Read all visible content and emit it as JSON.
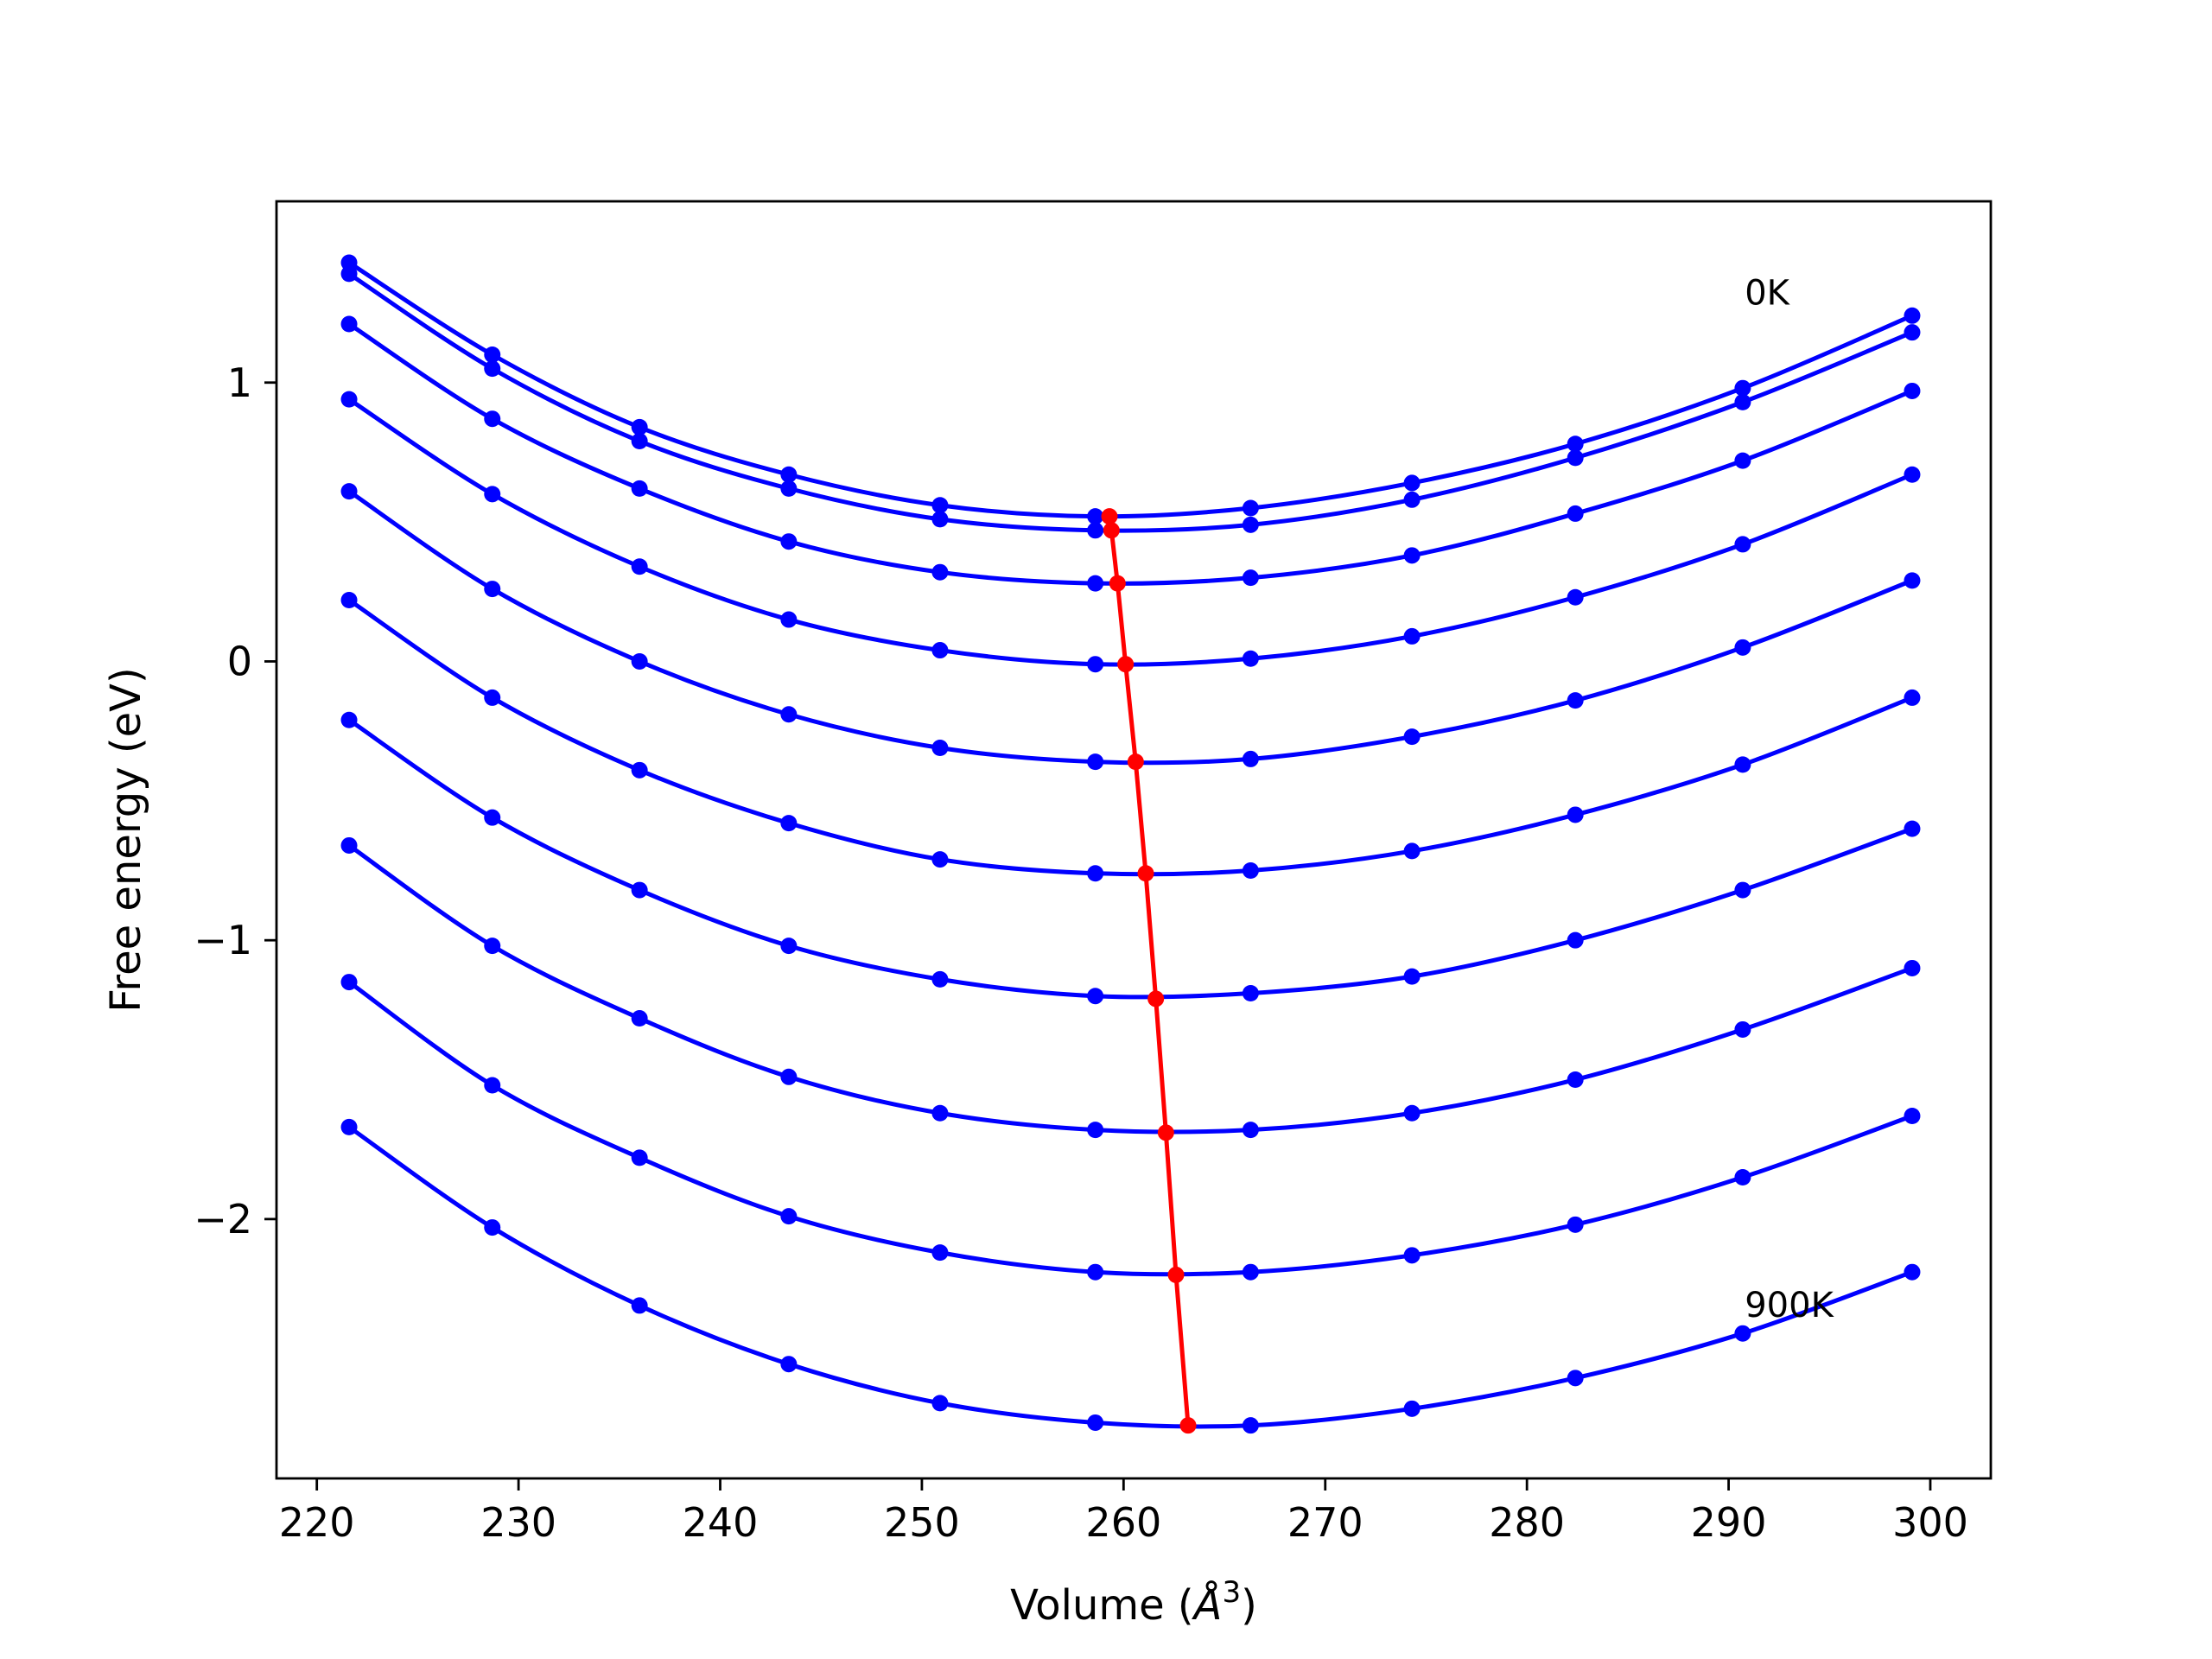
{
  "chart_data": {
    "type": "line",
    "title": "",
    "xlabel": "Volume (",
    "xlabel_symbol": "Å",
    "xlabel_superscript": "3",
    "xlabel_close": ")",
    "ylabel": "Free energy (eV)",
    "xlim": [
      218,
      303
    ],
    "ylim": [
      -2.93,
      1.65
    ],
    "xticks": [
      {
        "value": 220,
        "label": "220"
      },
      {
        "value": 230,
        "label": "230"
      },
      {
        "value": 240,
        "label": "240"
      },
      {
        "value": 250,
        "label": "250"
      },
      {
        "value": 260,
        "label": "260"
      },
      {
        "value": 270,
        "label": "270"
      },
      {
        "value": 280,
        "label": "280"
      },
      {
        "value": 290,
        "label": "290"
      },
      {
        "value": 300,
        "label": "300"
      }
    ],
    "yticks": [
      {
        "value": -2,
        "label": "−2"
      },
      {
        "value": -1,
        "label": "−1"
      },
      {
        "value": 0,
        "label": "0"
      },
      {
        "value": 1,
        "label": "1"
      }
    ],
    "grid": false,
    "colors": {
      "curves": "#0000ff",
      "minima": "#ff0000",
      "axes": "#000000"
    },
    "annotations": [
      {
        "text": "0K",
        "x": 290.8,
        "y": 1.28
      },
      {
        "text": "900K",
        "x": 290.8,
        "y": -2.35
      }
    ],
    "x": [
      221.6,
      228.7,
      236.0,
      243.4,
      250.9,
      258.6,
      266.3,
      274.3,
      282.4,
      290.7,
      299.1
    ],
    "series": [
      {
        "values": [
          1.43,
          1.1,
          0.84,
          0.67,
          0.56,
          0.52,
          0.55,
          0.64,
          0.78,
          0.98,
          1.24
        ]
      },
      {
        "values": [
          1.39,
          1.05,
          0.79,
          0.62,
          0.51,
          0.47,
          0.49,
          0.58,
          0.73,
          0.93,
          1.18
        ]
      },
      {
        "values": [
          1.21,
          0.87,
          0.62,
          0.43,
          0.32,
          0.28,
          0.3,
          0.38,
          0.53,
          0.72,
          0.97
        ]
      },
      {
        "values": [
          0.94,
          0.6,
          0.34,
          0.15,
          0.04,
          -0.01,
          0.01,
          0.09,
          0.23,
          0.42,
          0.67
        ]
      },
      {
        "values": [
          0.61,
          0.26,
          0.0,
          -0.19,
          -0.31,
          -0.36,
          -0.35,
          -0.27,
          -0.14,
          0.05,
          0.29
        ]
      },
      {
        "values": [
          0.22,
          -0.13,
          -0.39,
          -0.58,
          -0.71,
          -0.76,
          -0.75,
          -0.68,
          -0.55,
          -0.37,
          -0.13
        ]
      },
      {
        "values": [
          -0.21,
          -0.56,
          -0.82,
          -1.02,
          -1.14,
          -1.2,
          -1.19,
          -1.13,
          -1.0,
          -0.82,
          -0.6
        ]
      },
      {
        "values": [
          -0.66,
          -1.02,
          -1.28,
          -1.49,
          -1.62,
          -1.68,
          -1.68,
          -1.62,
          -1.5,
          -1.32,
          -1.1
        ]
      },
      {
        "values": [
          -1.15,
          -1.52,
          -1.78,
          -1.99,
          -2.12,
          -2.19,
          -2.19,
          -2.13,
          -2.02,
          -1.85,
          -1.63
        ]
      },
      {
        "values": [
          -1.67,
          -2.03,
          -2.31,
          -2.52,
          -2.66,
          -2.73,
          -2.74,
          -2.68,
          -2.57,
          -2.41,
          -2.19
        ]
      }
    ],
    "minima": {
      "x": [
        259.3,
        259.4,
        259.7,
        260.1,
        260.6,
        261.1,
        261.6,
        262.1,
        262.6,
        263.2
      ],
      "y": [
        0.52,
        0.47,
        0.28,
        -0.01,
        -0.36,
        -0.76,
        -1.21,
        -1.69,
        -2.2,
        -2.74
      ]
    }
  }
}
